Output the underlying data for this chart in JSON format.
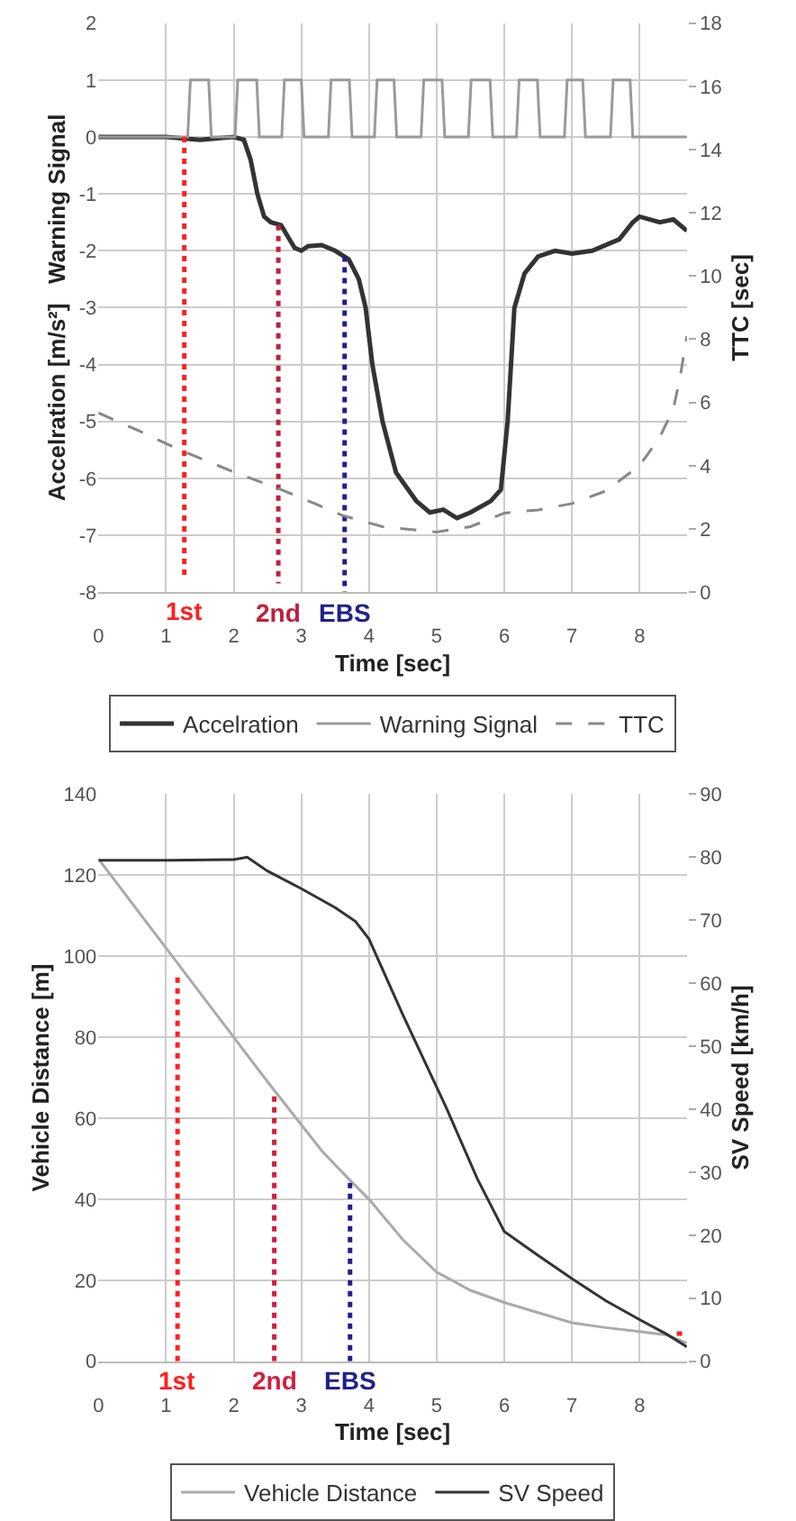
{
  "chart_data": [
    {
      "type": "line",
      "xlabel": "Time [sec]",
      "ylabel": "Accelration [m/s²]   Warning Signal",
      "y2label": "TTC [sec]",
      "xlim": [
        0,
        8.7
      ],
      "xticks": [
        0,
        1,
        2,
        3,
        4,
        5,
        6,
        7,
        8
      ],
      "ylim": [
        -8,
        2
      ],
      "yticks": [
        -8,
        -7,
        -6,
        -5,
        -4,
        -3,
        -2,
        -1,
        0,
        1,
        2
      ],
      "y2lim": [
        0,
        18
      ],
      "y2ticks": [
        0,
        2,
        4,
        6,
        8,
        10,
        12,
        14,
        16,
        18
      ],
      "grid": true,
      "legend": "bottom",
      "marker": "none",
      "series": [
        {
          "name": "Accelration",
          "color": "#333333",
          "line_style": "solid",
          "x": [
            0,
            0.5,
            1.0,
            1.5,
            2.0,
            2.15,
            2.25,
            2.35,
            2.45,
            2.55,
            2.7,
            2.8,
            2.9,
            3.0,
            3.1,
            3.3,
            3.5,
            3.7,
            3.85,
            3.95,
            4.05,
            4.2,
            4.4,
            4.7,
            4.9,
            5.1,
            5.3,
            5.5,
            5.8,
            5.95,
            6.05,
            6.15,
            6.3,
            6.5,
            6.75,
            7.0,
            7.3,
            7.7,
            7.9,
            8.0,
            8.3,
            8.5,
            8.7
          ],
          "values": [
            0,
            0,
            0,
            -0.05,
            0,
            -0.05,
            -0.4,
            -1.0,
            -1.4,
            -1.5,
            -1.55,
            -1.75,
            -1.95,
            -2.0,
            -1.92,
            -1.9,
            -2.0,
            -2.15,
            -2.5,
            -3.0,
            -4.0,
            -5.0,
            -5.9,
            -6.4,
            -6.6,
            -6.55,
            -6.7,
            -6.6,
            -6.4,
            -6.2,
            -5.0,
            -3.0,
            -2.4,
            -2.1,
            -2.0,
            -2.05,
            -2.0,
            -1.8,
            -1.5,
            -1.4,
            -1.5,
            -1.45,
            -1.65
          ]
        },
        {
          "name": "Warning Signal",
          "color": "#9a9a9a",
          "line_style": "solid",
          "x": [
            0,
            1.32,
            1.36,
            1.63,
            1.67,
            2.02,
            2.06,
            2.34,
            2.38,
            2.71,
            2.75,
            3.0,
            3.04,
            3.4,
            3.44,
            3.71,
            3.75,
            4.08,
            4.12,
            4.37,
            4.41,
            4.77,
            4.81,
            5.08,
            5.12,
            5.47,
            5.51,
            5.79,
            5.83,
            6.18,
            6.22,
            6.49,
            6.53,
            6.89,
            6.93,
            7.16,
            7.2,
            7.57,
            7.61,
            7.86,
            7.9,
            8.7
          ],
          "values": [
            0,
            0,
            1,
            1,
            0,
            0,
            1,
            1,
            0,
            0,
            1,
            1,
            0,
            0,
            1,
            1,
            0,
            0,
            1,
            1,
            0,
            0,
            1,
            1,
            0,
            0,
            1,
            1,
            0,
            0,
            1,
            1,
            0,
            0,
            1,
            1,
            0,
            0,
            1,
            1,
            0,
            0
          ]
        },
        {
          "name": "TTC",
          "color": "#888888",
          "line_style": "dashed",
          "axis": "y2",
          "x": [
            0,
            0.6,
            1.2,
            2.0,
            2.7,
            3.2,
            3.6,
            4.2,
            5.0,
            5.5,
            6.0,
            6.5,
            7.0,
            7.5,
            8.0,
            8.3,
            8.5,
            8.6,
            8.7
          ],
          "values": [
            5.67,
            5.1,
            4.5,
            3.8,
            3.24,
            2.8,
            2.43,
            2.07,
            1.9,
            2.07,
            2.5,
            2.6,
            2.8,
            3.2,
            4.0,
            4.9,
            5.8,
            6.8,
            8.1
          ]
        },
        {
          "color": "#ff2020",
          "line_style": "dotted",
          "x": [
            1.27,
            1.27
          ],
          "values": [
            0,
            -7.7
          ]
        },
        {
          "color": "#c0203c",
          "line_style": "dotted",
          "x": [
            2.66,
            2.66
          ],
          "values": [
            -1.55,
            -7.85
          ]
        },
        {
          "color": "#20208a",
          "line_style": "dotted",
          "x": [
            3.64,
            3.64
          ],
          "values": [
            -2.1,
            -8
          ]
        }
      ],
      "annotations": [
        {
          "text": "1st",
          "x": 1.27,
          "y": -7.7
        },
        {
          "text": "2nd",
          "x": 2.66,
          "y": -8
        },
        {
          "text": "EBS",
          "x": 3.64,
          "y": -8
        }
      ]
    },
    {
      "type": "line",
      "xlabel": "Time [sec]",
      "ylabel": "Vehicle Distance [m]",
      "y2label": "SV Speed [km/h]",
      "xlim": [
        0,
        8.7
      ],
      "xticks": [
        0,
        1,
        2,
        3,
        4,
        5,
        6,
        7,
        8
      ],
      "ylim": [
        0,
        140
      ],
      "yticks": [
        0,
        20,
        40,
        60,
        80,
        100,
        120,
        140
      ],
      "y2lim": [
        0,
        90
      ],
      "y2ticks": [
        0,
        10,
        20,
        30,
        40,
        50,
        60,
        70,
        80,
        90
      ],
      "grid": true,
      "legend": "bottom",
      "marker": "none",
      "series": [
        {
          "name": "Vehicle Distance",
          "color": "#aaaaaa",
          "line_style": "solid",
          "x": [
            0,
            0.5,
            1,
            1.5,
            2,
            2.5,
            2.9,
            3.3,
            3.7,
            4,
            4.5,
            5,
            5.5,
            6,
            6.5,
            7,
            7.5,
            8,
            8.4,
            8.7
          ],
          "values": [
            124,
            113,
            102,
            91,
            80,
            69,
            60.5,
            52,
            45,
            40,
            30,
            22,
            17.5,
            14.5,
            12,
            9.5,
            8.3,
            7.3,
            6.5,
            4.5
          ]
        },
        {
          "name": "SV Speed",
          "color": "#333333",
          "line_style": "solid",
          "axis": "y2",
          "x": [
            0,
            1,
            2,
            2.2,
            2.5,
            3.0,
            3.5,
            3.8,
            4.0,
            4.5,
            5.14,
            5.6,
            6.0,
            6.5,
            7.0,
            7.5,
            8.0,
            8.4,
            8.7
          ],
          "values": [
            79.5,
            79.5,
            79.6,
            80,
            77.8,
            75,
            72,
            69.8,
            67,
            55,
            40.3,
            29,
            20.6,
            16.8,
            13.1,
            9.6,
            6.6,
            4.3,
            2.3
          ]
        },
        {
          "color": "#ff2020",
          "line_style": "dotted",
          "x": [
            1.17,
            1.17
          ],
          "values": [
            0,
            95
          ]
        },
        {
          "color": "#d02040",
          "line_style": "dotted",
          "x": [
            2.6,
            2.6
          ],
          "values": [
            0,
            66
          ]
        },
        {
          "color": "#20208a",
          "line_style": "dotted",
          "x": [
            3.72,
            3.72
          ],
          "values": [
            0,
            45
          ]
        },
        {
          "color": "#ff2020",
          "line_style": "dotted",
          "axis": "y2",
          "x": [
            8.55,
            8.7
          ],
          "values": [
            4.4,
            4.4
          ]
        }
      ],
      "annotations": [
        {
          "text": "1st",
          "x": 1.17,
          "y": 0
        },
        {
          "text": "2nd",
          "x": 2.6,
          "y": 0
        },
        {
          "text": "EBS",
          "x": 3.72,
          "y": 0
        }
      ]
    }
  ]
}
